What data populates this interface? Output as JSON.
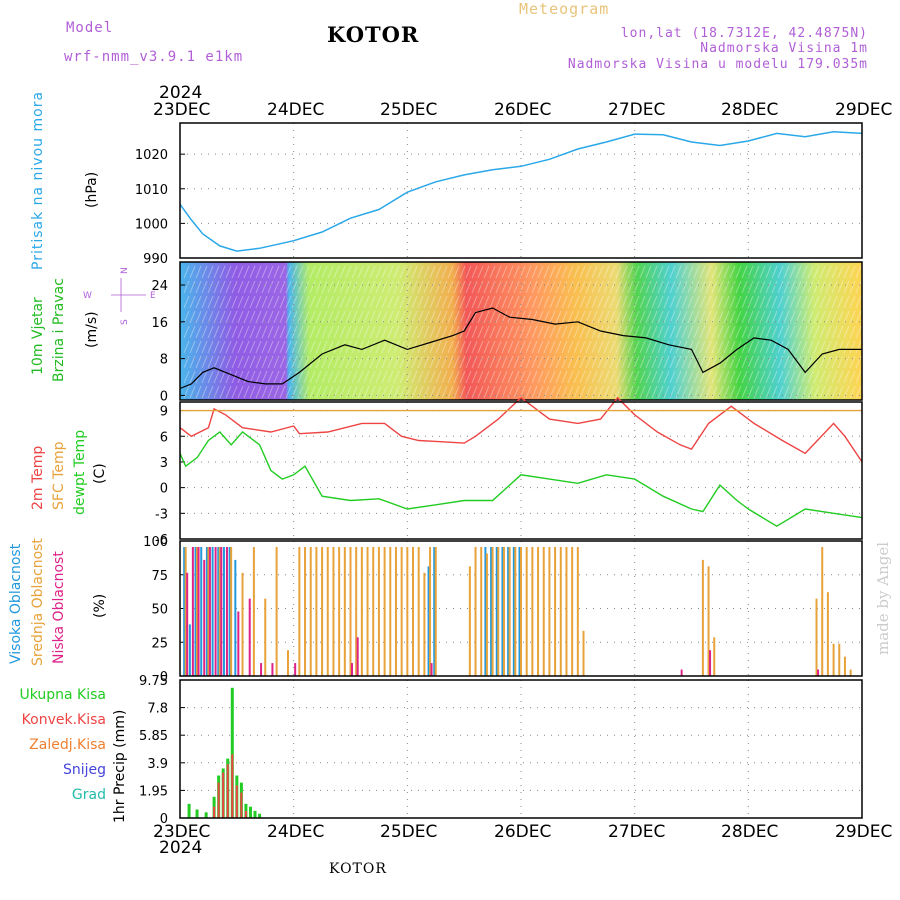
{
  "header": {
    "model_label": "Model",
    "model_name": "wrf-nmm_v3.9.1  e1km",
    "station": "KOTOR",
    "meteogram_label": "Meteogram",
    "lonlat": "lon,lat (18.7312E, 42.4875N)",
    "elevation": "Nadmorska Visina 1m",
    "model_elevation": "Nadmorska Visina u modelu 179.035m"
  },
  "footer": {
    "station": "KOTOR",
    "watermark": "made by Angel"
  },
  "time_axis": {
    "year": "2024",
    "labels": [
      "23DEC",
      "24DEC",
      "25DEC",
      "26DEC",
      "27DEC",
      "28DEC",
      "29DEC"
    ]
  },
  "colors": {
    "pressure": "#2aa8e8",
    "temp2m": "#ee4444",
    "sfc_temp": "#e8a23a",
    "dewpoint": "#22cc22",
    "high_cloud": "#2299dd",
    "mid_cloud": "#e8a23a",
    "low_cloud": "#dd2288",
    "wind_label": "#22bb22",
    "wind_legend": "#b15fd6"
  },
  "panels": {
    "pressure": {
      "ylabel": "Pritisak na nivou mora",
      "unit": "(hPa)"
    },
    "wind": {
      "ylabel1": "10m Vjetar",
      "ylabel2": "Brzina i Pravac",
      "unit": "(m/s)",
      "compass": [
        "N",
        "W",
        "E",
        "S"
      ]
    },
    "temp": {
      "ylabel1": "2m Temp",
      "ylabel2": "SFC Temp",
      "ylabel3": "dewpt Temp",
      "unit": "(C)"
    },
    "cloud": {
      "ylabel1": "Visoka Oblacnost",
      "ylabel2": "Srednja Oblacnost",
      "ylabel3": "Niska Oblacnost",
      "unit": "(%)"
    },
    "precip": {
      "legend": [
        "Ukupna Kisa",
        "Konvek.Kisa",
        "Zaledj.Kisa",
        "Snijeg",
        "Grad"
      ],
      "ylabel": "1hr Precip (mm)"
    }
  },
  "chart_data": [
    {
      "type": "line",
      "name": "pressure",
      "x_unit": "days since 23DEC 00",
      "ylim": [
        990,
        1029
      ],
      "yticks": [
        "990",
        "1000",
        "1010",
        "1020"
      ],
      "x": [
        0,
        0.1,
        0.2,
        0.35,
        0.5,
        0.7,
        1.0,
        1.25,
        1.5,
        1.75,
        2.0,
        2.25,
        2.5,
        2.75,
        3.0,
        3.25,
        3.5,
        3.75,
        4.0,
        4.25,
        4.5,
        4.75,
        5.0,
        5.25,
        5.5,
        5.75,
        6.0
      ],
      "values": [
        1005.5,
        1001,
        997,
        993.5,
        992,
        992.8,
        995,
        997.5,
        1001.5,
        1004,
        1009,
        1012,
        1014,
        1015.5,
        1016.5,
        1018.5,
        1021.5,
        1023.5,
        1025.8,
        1025.6,
        1023.5,
        1022.5,
        1023.8,
        1026,
        1025,
        1026.5,
        1026
      ]
    },
    {
      "type": "line",
      "name": "wind speed",
      "ylim": [
        -1,
        29
      ],
      "yticks": [
        "0",
        "8",
        "16",
        "24"
      ],
      "x": [
        0,
        0.1,
        0.2,
        0.3,
        0.45,
        0.6,
        0.75,
        0.9,
        1.05,
        1.25,
        1.45,
        1.6,
        1.8,
        2.0,
        2.2,
        2.4,
        2.5,
        2.6,
        2.75,
        2.9,
        3.1,
        3.3,
        3.5,
        3.7,
        3.9,
        4.1,
        4.3,
        4.5,
        4.6,
        4.75,
        4.9,
        5.05,
        5.2,
        5.35,
        5.5,
        5.65,
        5.8,
        6.0
      ],
      "values": [
        1.5,
        2.5,
        5,
        6,
        4.5,
        3,
        2.5,
        2.5,
        5,
        9,
        11,
        10,
        12,
        10,
        11.5,
        13,
        14,
        18,
        19,
        17,
        16.5,
        15.5,
        16,
        14,
        13,
        12.5,
        11,
        10,
        5,
        7,
        10,
        12.5,
        12,
        10,
        5,
        9,
        10,
        10
      ]
    },
    {
      "type": "line",
      "name": "temperature",
      "ylim": [
        -6,
        10
      ],
      "yticks": [
        "-6",
        "-3",
        "0",
        "3",
        "6",
        "9"
      ],
      "series": [
        {
          "name": "2m Temp",
          "x": [
            0,
            0.1,
            0.25,
            0.3,
            0.4,
            0.55,
            0.8,
            1.0,
            1.05,
            1.3,
            1.6,
            1.8,
            1.95,
            2.1,
            2.25,
            2.5,
            2.6,
            2.8,
            3.0,
            3.25,
            3.5,
            3.7,
            3.85,
            4.0,
            4.2,
            4.4,
            4.5,
            4.65,
            4.85,
            5.05,
            5.3,
            5.5,
            5.75,
            5.85,
            6.0
          ],
          "values": [
            7,
            6,
            7,
            9.2,
            8.5,
            7,
            6.5,
            7.2,
            6.3,
            6.5,
            7.5,
            7.5,
            6,
            5.5,
            5.4,
            5.2,
            6,
            8,
            10.5,
            8,
            7.5,
            8,
            10.5,
            8.5,
            6.5,
            5,
            4.5,
            7.5,
            9.5,
            7.5,
            5.5,
            4,
            7.5,
            6,
            3
          ]
        },
        {
          "name": "SFC Temp",
          "x": [
            0,
            6
          ],
          "values": [
            9,
            9
          ]
        },
        {
          "name": "dewpt Temp",
          "x": [
            0,
            0.05,
            0.15,
            0.25,
            0.35,
            0.45,
            0.55,
            0.7,
            0.8,
            0.9,
            1.0,
            1.1,
            1.25,
            1.5,
            1.75,
            2.0,
            2.25,
            2.5,
            2.75,
            3.0,
            3.25,
            3.5,
            3.75,
            4.0,
            4.25,
            4.5,
            4.6,
            4.75,
            4.9,
            5.0,
            5.25,
            5.5,
            5.75,
            6.0
          ],
          "values": [
            4,
            2.5,
            3.5,
            5.5,
            6.5,
            5,
            6.5,
            5,
            2,
            1,
            1.5,
            2.5,
            -1,
            -1.5,
            -1.3,
            -2.5,
            -2,
            -1.5,
            -1.5,
            1.5,
            1,
            0.5,
            1.5,
            1,
            -1,
            -2.5,
            -2.8,
            0.3,
            -1.5,
            -2.5,
            -4.5,
            -2.5,
            -3,
            -3.5
          ]
        }
      ]
    },
    {
      "type": "bar",
      "name": "cloud cover",
      "ylim": [
        0,
        100
      ],
      "yticks": [
        "0",
        "25",
        "50",
        "75",
        "100"
      ],
      "series": [
        {
          "name": "Visoka Oblacnost",
          "x": [
            0.05,
            0.1,
            0.15,
            0.2,
            0.25,
            0.3,
            0.35,
            0.4,
            0.45,
            0.5,
            2.2,
            2.25,
            2.7,
            2.75,
            2.8,
            2.85,
            2.9,
            2.95,
            3.0
          ],
          "values": [
            100,
            40,
            100,
            100,
            100,
            100,
            100,
            100,
            100,
            90,
            85,
            100,
            100,
            100,
            100,
            100,
            100,
            100,
            100
          ]
        },
        {
          "name": "Srednja Oblacnost",
          "x": [
            0.05,
            0.15,
            0.25,
            0.35,
            0.45,
            0.55,
            0.65,
            0.75,
            0.85,
            0.95,
            1.05,
            1.1,
            1.15,
            1.2,
            1.25,
            1.3,
            1.35,
            1.4,
            1.45,
            1.5,
            1.55,
            1.6,
            1.65,
            1.7,
            1.75,
            1.8,
            1.85,
            1.9,
            1.95,
            2.0,
            2.05,
            2.1,
            2.15,
            2.2,
            2.25,
            2.55,
            2.6,
            2.65,
            2.7,
            2.75,
            2.8,
            2.85,
            2.9,
            2.95,
            3.0,
            3.05,
            3.1,
            3.15,
            3.2,
            3.25,
            3.3,
            3.35,
            3.4,
            3.45,
            3.5,
            3.55,
            3.6,
            4.6,
            4.65,
            4.7,
            5.6,
            5.65,
            5.7,
            5.75,
            5.8,
            5.85,
            5.9
          ],
          "values": [
            100,
            100,
            100,
            100,
            100,
            80,
            100,
            60,
            100,
            20,
            100,
            100,
            100,
            100,
            100,
            100,
            100,
            100,
            100,
            100,
            100,
            100,
            100,
            100,
            100,
            100,
            100,
            100,
            100,
            100,
            100,
            100,
            80,
            100,
            100,
            85,
            100,
            100,
            95,
            100,
            100,
            100,
            100,
            100,
            100,
            100,
            100,
            100,
            100,
            100,
            100,
            100,
            100,
            100,
            100,
            35,
            0,
            90,
            85,
            30,
            60,
            100,
            65,
            25,
            25,
            15,
            5
          ]
        },
        {
          "name": "Niska Oblacnost",
          "x": [
            0.05,
            0.1,
            0.15,
            0.2,
            0.25,
            0.3,
            0.35,
            0.4,
            0.5,
            0.6,
            0.7,
            0.8,
            1.0,
            1.5,
            1.55,
            2.2,
            4.4,
            4.65,
            5.6
          ],
          "values": [
            80,
            100,
            100,
            90,
            100,
            100,
            100,
            100,
            50,
            60,
            10,
            10,
            10,
            10,
            30,
            10,
            5,
            20,
            5
          ]
        }
      ]
    },
    {
      "type": "bar",
      "name": "precipitation",
      "ylim": [
        0,
        9.75
      ],
      "yticks": [
        "0",
        "1.95",
        "3.9",
        "5.85",
        "7.8",
        "9.75"
      ],
      "series": [
        {
          "name": "Ukupna Kisa",
          "x": [
            0.08,
            0.15,
            0.23,
            0.3,
            0.34,
            0.38,
            0.42,
            0.46,
            0.5,
            0.54,
            0.58,
            0.62,
            0.66,
            0.7
          ],
          "values": [
            1.0,
            0.6,
            0.4,
            1.5,
            3.0,
            3.5,
            4.2,
            9.2,
            3.0,
            2.5,
            1.0,
            0.8,
            0.5,
            0.3
          ]
        },
        {
          "name": "Konvek.Kisa",
          "x": [
            0.3,
            0.34,
            0.38,
            0.42,
            0.46,
            0.5,
            0.54,
            0.58
          ],
          "values": [
            0.8,
            2.5,
            3.2,
            3.8,
            4.5,
            2.3,
            1.8,
            0.5
          ]
        }
      ]
    }
  ]
}
